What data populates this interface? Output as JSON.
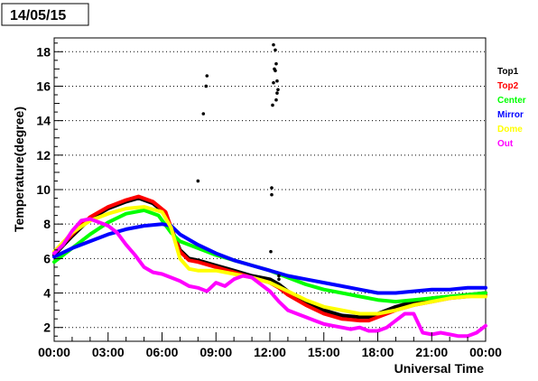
{
  "chart_data": {
    "type": "line",
    "title": "14/05/15",
    "xlabel": "Universal Time",
    "ylabel": "Temperature(degree)",
    "xlim": [
      0,
      24
    ],
    "ylim": [
      1.2,
      18.8
    ],
    "x_ticks": [
      0,
      3,
      6,
      9,
      12,
      15,
      18,
      21,
      24
    ],
    "x_tick_labels": [
      "00:00",
      "03:00",
      "06:00",
      "09:00",
      "12:00",
      "15:00",
      "18:00",
      "21:00",
      "00:00"
    ],
    "y_ticks": [
      2,
      4,
      6,
      8,
      10,
      12,
      14,
      16,
      18
    ],
    "y_tick_labels": [
      "2",
      "4",
      "6",
      "8",
      "10",
      "12",
      "14",
      "16",
      "18"
    ],
    "grid": "horizontal dotted",
    "legend_position": "right",
    "series": [
      {
        "name": "Top1",
        "color": "#000000",
        "x": [
          0,
          1,
          2,
          3,
          4,
          4.7,
          5.5,
          6.2,
          6.5,
          7,
          7.5,
          8,
          9,
          10,
          11,
          12,
          12.5,
          13,
          14,
          15,
          16,
          17,
          17.5,
          18,
          19,
          20,
          21,
          22,
          23,
          24
        ],
        "y": [
          6.2,
          7.3,
          8.3,
          8.9,
          9.3,
          9.5,
          9.2,
          8.6,
          7.8,
          6.5,
          6.0,
          5.9,
          5.6,
          5.3,
          5.0,
          4.8,
          4.5,
          4.1,
          3.5,
          3.0,
          2.7,
          2.6,
          2.6,
          2.8,
          3.2,
          3.5,
          3.7,
          3.8,
          3.9,
          4.0
        ]
      },
      {
        "name": "Top2",
        "color": "#ff0000",
        "x": [
          0,
          1,
          2,
          3,
          4,
          4.7,
          5.5,
          6.2,
          6.5,
          7,
          7.5,
          8,
          9,
          10,
          11,
          12,
          12.5,
          13,
          14,
          15,
          16,
          17,
          17.5,
          18,
          19,
          20,
          21,
          22,
          23,
          24
        ],
        "y": [
          6.3,
          7.4,
          8.4,
          9.0,
          9.4,
          9.6,
          9.3,
          8.7,
          7.8,
          6.4,
          5.9,
          5.8,
          5.5,
          5.2,
          4.9,
          4.6,
          4.3,
          3.9,
          3.3,
          2.8,
          2.5,
          2.4,
          2.4,
          2.6,
          3.0,
          3.3,
          3.5,
          3.7,
          3.8,
          3.9
        ]
      },
      {
        "name": "Center",
        "color": "#00ff00",
        "x": [
          0,
          1,
          2,
          3,
          4,
          5,
          5.8,
          6.5,
          7,
          8,
          9,
          10,
          11,
          12,
          13,
          14,
          15,
          16,
          17,
          18,
          19,
          20,
          21,
          22,
          23,
          24
        ],
        "y": [
          5.8,
          6.6,
          7.4,
          8.1,
          8.6,
          8.8,
          8.5,
          7.5,
          7.0,
          6.6,
          6.2,
          5.9,
          5.6,
          5.3,
          4.9,
          4.5,
          4.2,
          4.0,
          3.8,
          3.6,
          3.5,
          3.6,
          3.7,
          3.8,
          3.9,
          4.0
        ]
      },
      {
        "name": "Mirror",
        "color": "#0000ff",
        "x": [
          0,
          1,
          2,
          3,
          4,
          5,
          6,
          6.5,
          7,
          8,
          9,
          10,
          11,
          12,
          13,
          14,
          15,
          16,
          17,
          18,
          19,
          20,
          21,
          22,
          23,
          24
        ],
        "y": [
          6.1,
          6.6,
          7.0,
          7.4,
          7.7,
          7.9,
          8.0,
          7.9,
          7.4,
          6.8,
          6.3,
          5.9,
          5.6,
          5.3,
          5.0,
          4.8,
          4.6,
          4.4,
          4.2,
          4.0,
          4.0,
          4.1,
          4.2,
          4.2,
          4.3,
          4.3
        ]
      },
      {
        "name": "Dome",
        "color": "#ffff00",
        "x": [
          0,
          1,
          2,
          3,
          4,
          5,
          6,
          6.5,
          7,
          7.5,
          8,
          9,
          10,
          11,
          12,
          13,
          14,
          15,
          16,
          17,
          18,
          19,
          20,
          21,
          22,
          23,
          24
        ],
        "y": [
          6.4,
          7.5,
          8.2,
          8.6,
          8.9,
          9.0,
          8.7,
          7.8,
          6.0,
          5.4,
          5.3,
          5.3,
          5.1,
          4.9,
          4.6,
          4.1,
          3.6,
          3.2,
          3.0,
          2.8,
          2.8,
          3.0,
          3.3,
          3.5,
          3.7,
          3.8,
          3.8
        ]
      },
      {
        "name": "Out",
        "color": "#ff00ff",
        "x": [
          0,
          0.5,
          1,
          1.5,
          2,
          2.5,
          3,
          3.5,
          4,
          4.5,
          5,
          5.5,
          6,
          6.5,
          7,
          7.5,
          8,
          8.5,
          9,
          9.5,
          10,
          10.5,
          11,
          11.5,
          12,
          12.5,
          13,
          13.5,
          14,
          14.5,
          15,
          15.5,
          16,
          16.5,
          17,
          17.5,
          18,
          18.5,
          19,
          19.5,
          20,
          20.5,
          21,
          21.5,
          22,
          22.5,
          23,
          23.5,
          24
        ],
        "y": [
          6.3,
          6.8,
          7.6,
          8.2,
          8.3,
          8.1,
          7.9,
          7.5,
          6.8,
          6.2,
          5.5,
          5.2,
          5.1,
          4.9,
          4.7,
          4.4,
          4.3,
          4.1,
          4.6,
          4.4,
          4.8,
          5.0,
          4.9,
          4.5,
          4.1,
          3.5,
          3.0,
          2.8,
          2.6,
          2.4,
          2.2,
          2.1,
          2.0,
          1.9,
          2.0,
          1.8,
          1.8,
          2.0,
          2.4,
          2.8,
          2.8,
          1.7,
          1.6,
          1.7,
          1.6,
          1.5,
          1.5,
          1.7,
          2.1
        ]
      },
      {
        "name": "",
        "color": "#000000",
        "kind": "points",
        "x": [
          8.0,
          8.3,
          8.45,
          8.5,
          12.05,
          12.1,
          12.1,
          12.15,
          12.2,
          12.2,
          12.25,
          12.3,
          12.3,
          12.35,
          12.35,
          12.4,
          12.4,
          12.45,
          12.5,
          12.5
        ],
        "y": [
          10.5,
          14.4,
          16.0,
          16.6,
          6.4,
          10.1,
          9.7,
          14.9,
          16.2,
          18.4,
          17.0,
          16.9,
          18.1,
          17.3,
          15.2,
          16.3,
          15.6,
          15.8,
          5.0,
          4.8
        ]
      }
    ]
  }
}
